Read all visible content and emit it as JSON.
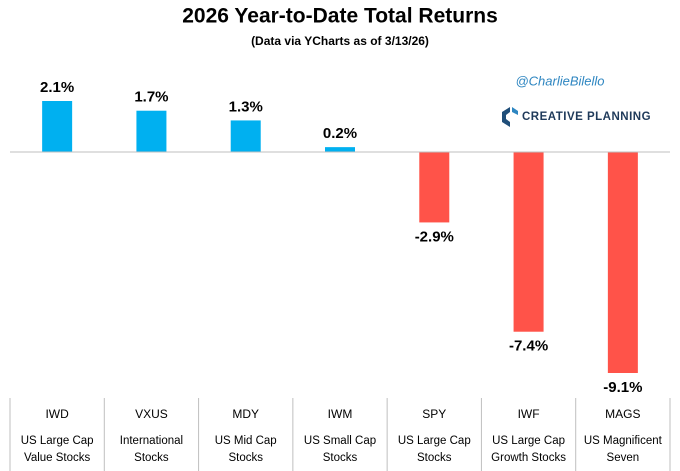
{
  "chart_data": {
    "type": "bar",
    "title": "2026 Year-to-Date Total Returns",
    "subtitle": "(Data via YCharts as of 3/13/26)",
    "categories": [
      "IWD",
      "VXUS",
      "MDY",
      "IWM",
      "SPY",
      "IWF",
      "MAGS"
    ],
    "descriptions": [
      [
        "US Large Cap",
        "Value Stocks"
      ],
      [
        "International",
        "Stocks"
      ],
      [
        "US Mid Cap",
        "Stocks"
      ],
      [
        "US Small Cap",
        "Stocks"
      ],
      [
        "US Large Cap",
        "Stocks"
      ],
      [
        "US Large Cap",
        "Growth Stocks"
      ],
      [
        "US Magnificent",
        "Seven"
      ]
    ],
    "values": [
      2.1,
      1.7,
      1.3,
      0.2,
      -2.9,
      -7.4,
      -9.1
    ],
    "value_labels": [
      "2.1%",
      "1.7%",
      "1.3%",
      "0.2%",
      "-2.9%",
      "-7.4%",
      "-9.1%"
    ],
    "colors": [
      "#00b0f0",
      "#00b0f0",
      "#00b0f0",
      "#00b0f0",
      "#ff5349",
      "#ff5349",
      "#ff5349"
    ],
    "annotations": {
      "handle": "@CharlieBilello",
      "brand": "CREATIVE PLANNING"
    }
  }
}
